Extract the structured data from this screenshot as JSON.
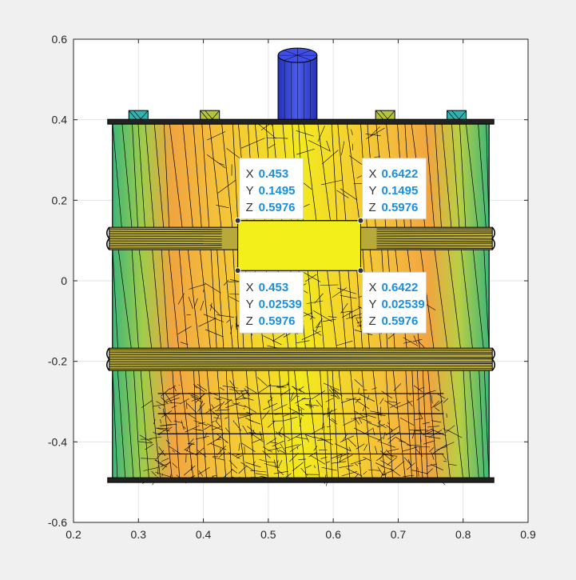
{
  "chart_data": {
    "type": "surface",
    "title": "",
    "xlabel": "",
    "ylabel": "",
    "xlim": [
      0.2,
      0.9
    ],
    "ylim": [
      -0.6,
      0.6
    ],
    "grid": true,
    "x_ticks": [
      0.2,
      0.3,
      0.4,
      0.5,
      0.6,
      0.7,
      0.8,
      0.9
    ],
    "y_ticks": [
      -0.6,
      -0.4,
      -0.2,
      0,
      0.2,
      0.4,
      0.6
    ],
    "x_tick_labels": [
      "0.2",
      "0.3",
      "0.4",
      "0.5",
      "0.6",
      "0.7",
      "0.8",
      "0.9"
    ],
    "y_tick_labels": [
      "-0.6",
      "-0.4",
      "-0.2",
      "0",
      "0.2",
      "0.4",
      "0.6"
    ],
    "object": {
      "x_range": [
        0.26,
        0.84
      ],
      "y_range": [
        -0.495,
        0.395
      ],
      "ribs_y": [
        0.105,
        -0.195
      ],
      "top_cylinder": {
        "x_range": [
          0.515,
          0.575
        ],
        "y_range": [
          0.41,
          0.56
        ]
      },
      "top_tabs_x": [
        0.3,
        0.41,
        0.545,
        0.68,
        0.79
      ]
    },
    "colors": {
      "panel_yellow": "#f2ef1a",
      "side_green": "#4fbf73",
      "side_orange": "#f4a93c",
      "cylinder_blue": "#3848d8",
      "tab_teal": "#2fb3b0",
      "mesh": "#000000"
    },
    "datatips": [
      {
        "x": "0.453",
        "y": "0.1495",
        "z": "0.5976",
        "px": 0.453,
        "py": 0.1495
      },
      {
        "x": "0.6422",
        "y": "0.1495",
        "z": "0.5976",
        "px": 0.6422,
        "py": 0.1495
      },
      {
        "x": "0.453",
        "y": "0.02539",
        "z": "0.5976",
        "px": 0.453,
        "py": 0.02539
      },
      {
        "x": "0.6422",
        "y": "0.02539",
        "z": "0.5976",
        "px": 0.6422,
        "py": 0.02539
      }
    ],
    "tip_labels": {
      "x": "X",
      "y": "Y",
      "z": "Z"
    }
  }
}
